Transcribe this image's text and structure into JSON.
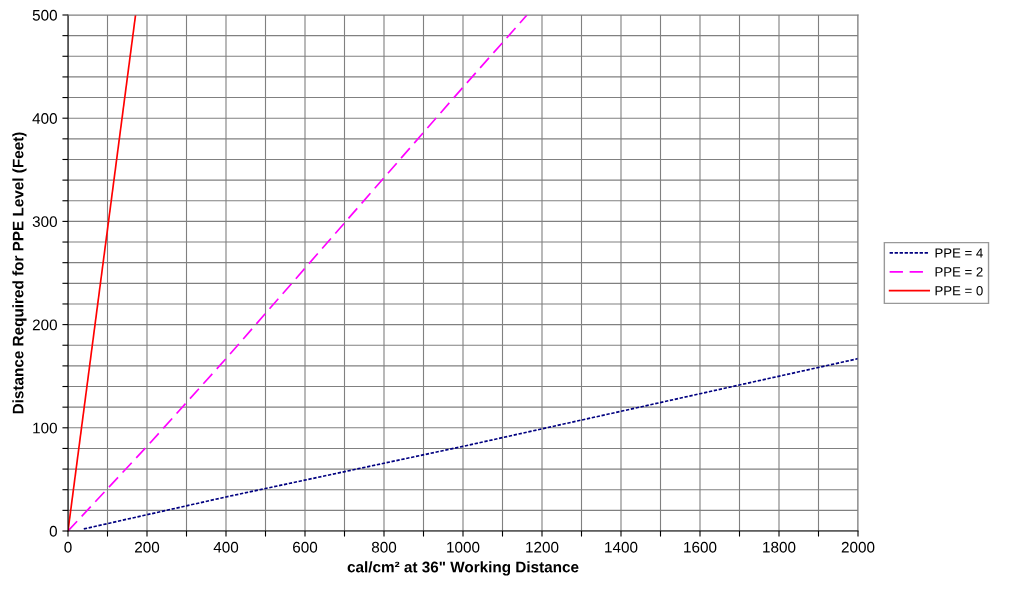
{
  "chart_data": {
    "type": "line",
    "xlabel": "cal/cm² at 36\" Working Distance",
    "ylabel": "Distance Required for PPE Level (Feet)",
    "xlim": [
      0,
      2000
    ],
    "ylim": [
      0,
      500
    ],
    "xticks": [
      0,
      {
        "value": 100,
        "label": null
      },
      200,
      {
        "value": 300,
        "label": null
      },
      400,
      {
        "value": 500,
        "label": null
      },
      600,
      {
        "value": 700,
        "label": null
      },
      800,
      {
        "value": 900,
        "label": null
      },
      1000,
      {
        "value": 1100,
        "label": null
      },
      1200,
      {
        "value": 1300,
        "label": null
      },
      1400,
      {
        "value": 1500,
        "label": null
      },
      1600,
      {
        "value": 1700,
        "label": null
      },
      1800,
      {
        "value": 1900,
        "label": null
      },
      2000
    ],
    "yticks": [
      0,
      {
        "value": 20,
        "label": null
      },
      {
        "value": 40,
        "label": null
      },
      {
        "value": 60,
        "label": null
      },
      {
        "value": 80,
        "label": null
      },
      100,
      {
        "value": 120,
        "label": null
      },
      {
        "value": 140,
        "label": null
      },
      {
        "value": 160,
        "label": null
      },
      {
        "value": 180,
        "label": null
      },
      200,
      {
        "value": 220,
        "label": null
      },
      {
        "value": 240,
        "label": null
      },
      {
        "value": 260,
        "label": null
      },
      {
        "value": 280,
        "label": null
      },
      300,
      {
        "value": 320,
        "label": null
      },
      {
        "value": 340,
        "label": null
      },
      {
        "value": 360,
        "label": null
      },
      {
        "value": 380,
        "label": null
      },
      400,
      {
        "value": 420,
        "label": null
      },
      {
        "value": 440,
        "label": null
      },
      {
        "value": 460,
        "label": null
      },
      {
        "value": 480,
        "label": null
      },
      500
    ],
    "grid": true,
    "legend": "right",
    "marker": "none",
    "series": [
      {
        "name": "PPE = 4",
        "color": "#000080",
        "line_style": "dotted",
        "x": [
          40,
          400,
          1000,
          1600,
          2000
        ],
        "values": [
          2,
          33,
          82,
          133,
          167
        ]
      },
      {
        "name": "PPE = 2",
        "color": "#ff00ff",
        "line_style": "dashed",
        "x": [
          0,
          200,
          400,
          1000,
          1162
        ],
        "values": [
          0,
          82,
          167,
          430,
          500
        ]
      },
      {
        "name": "PPE = 0",
        "color": "#ff0000",
        "line_style": "solid",
        "x": [
          0,
          171
        ],
        "values": [
          0,
          500
        ]
      }
    ]
  }
}
